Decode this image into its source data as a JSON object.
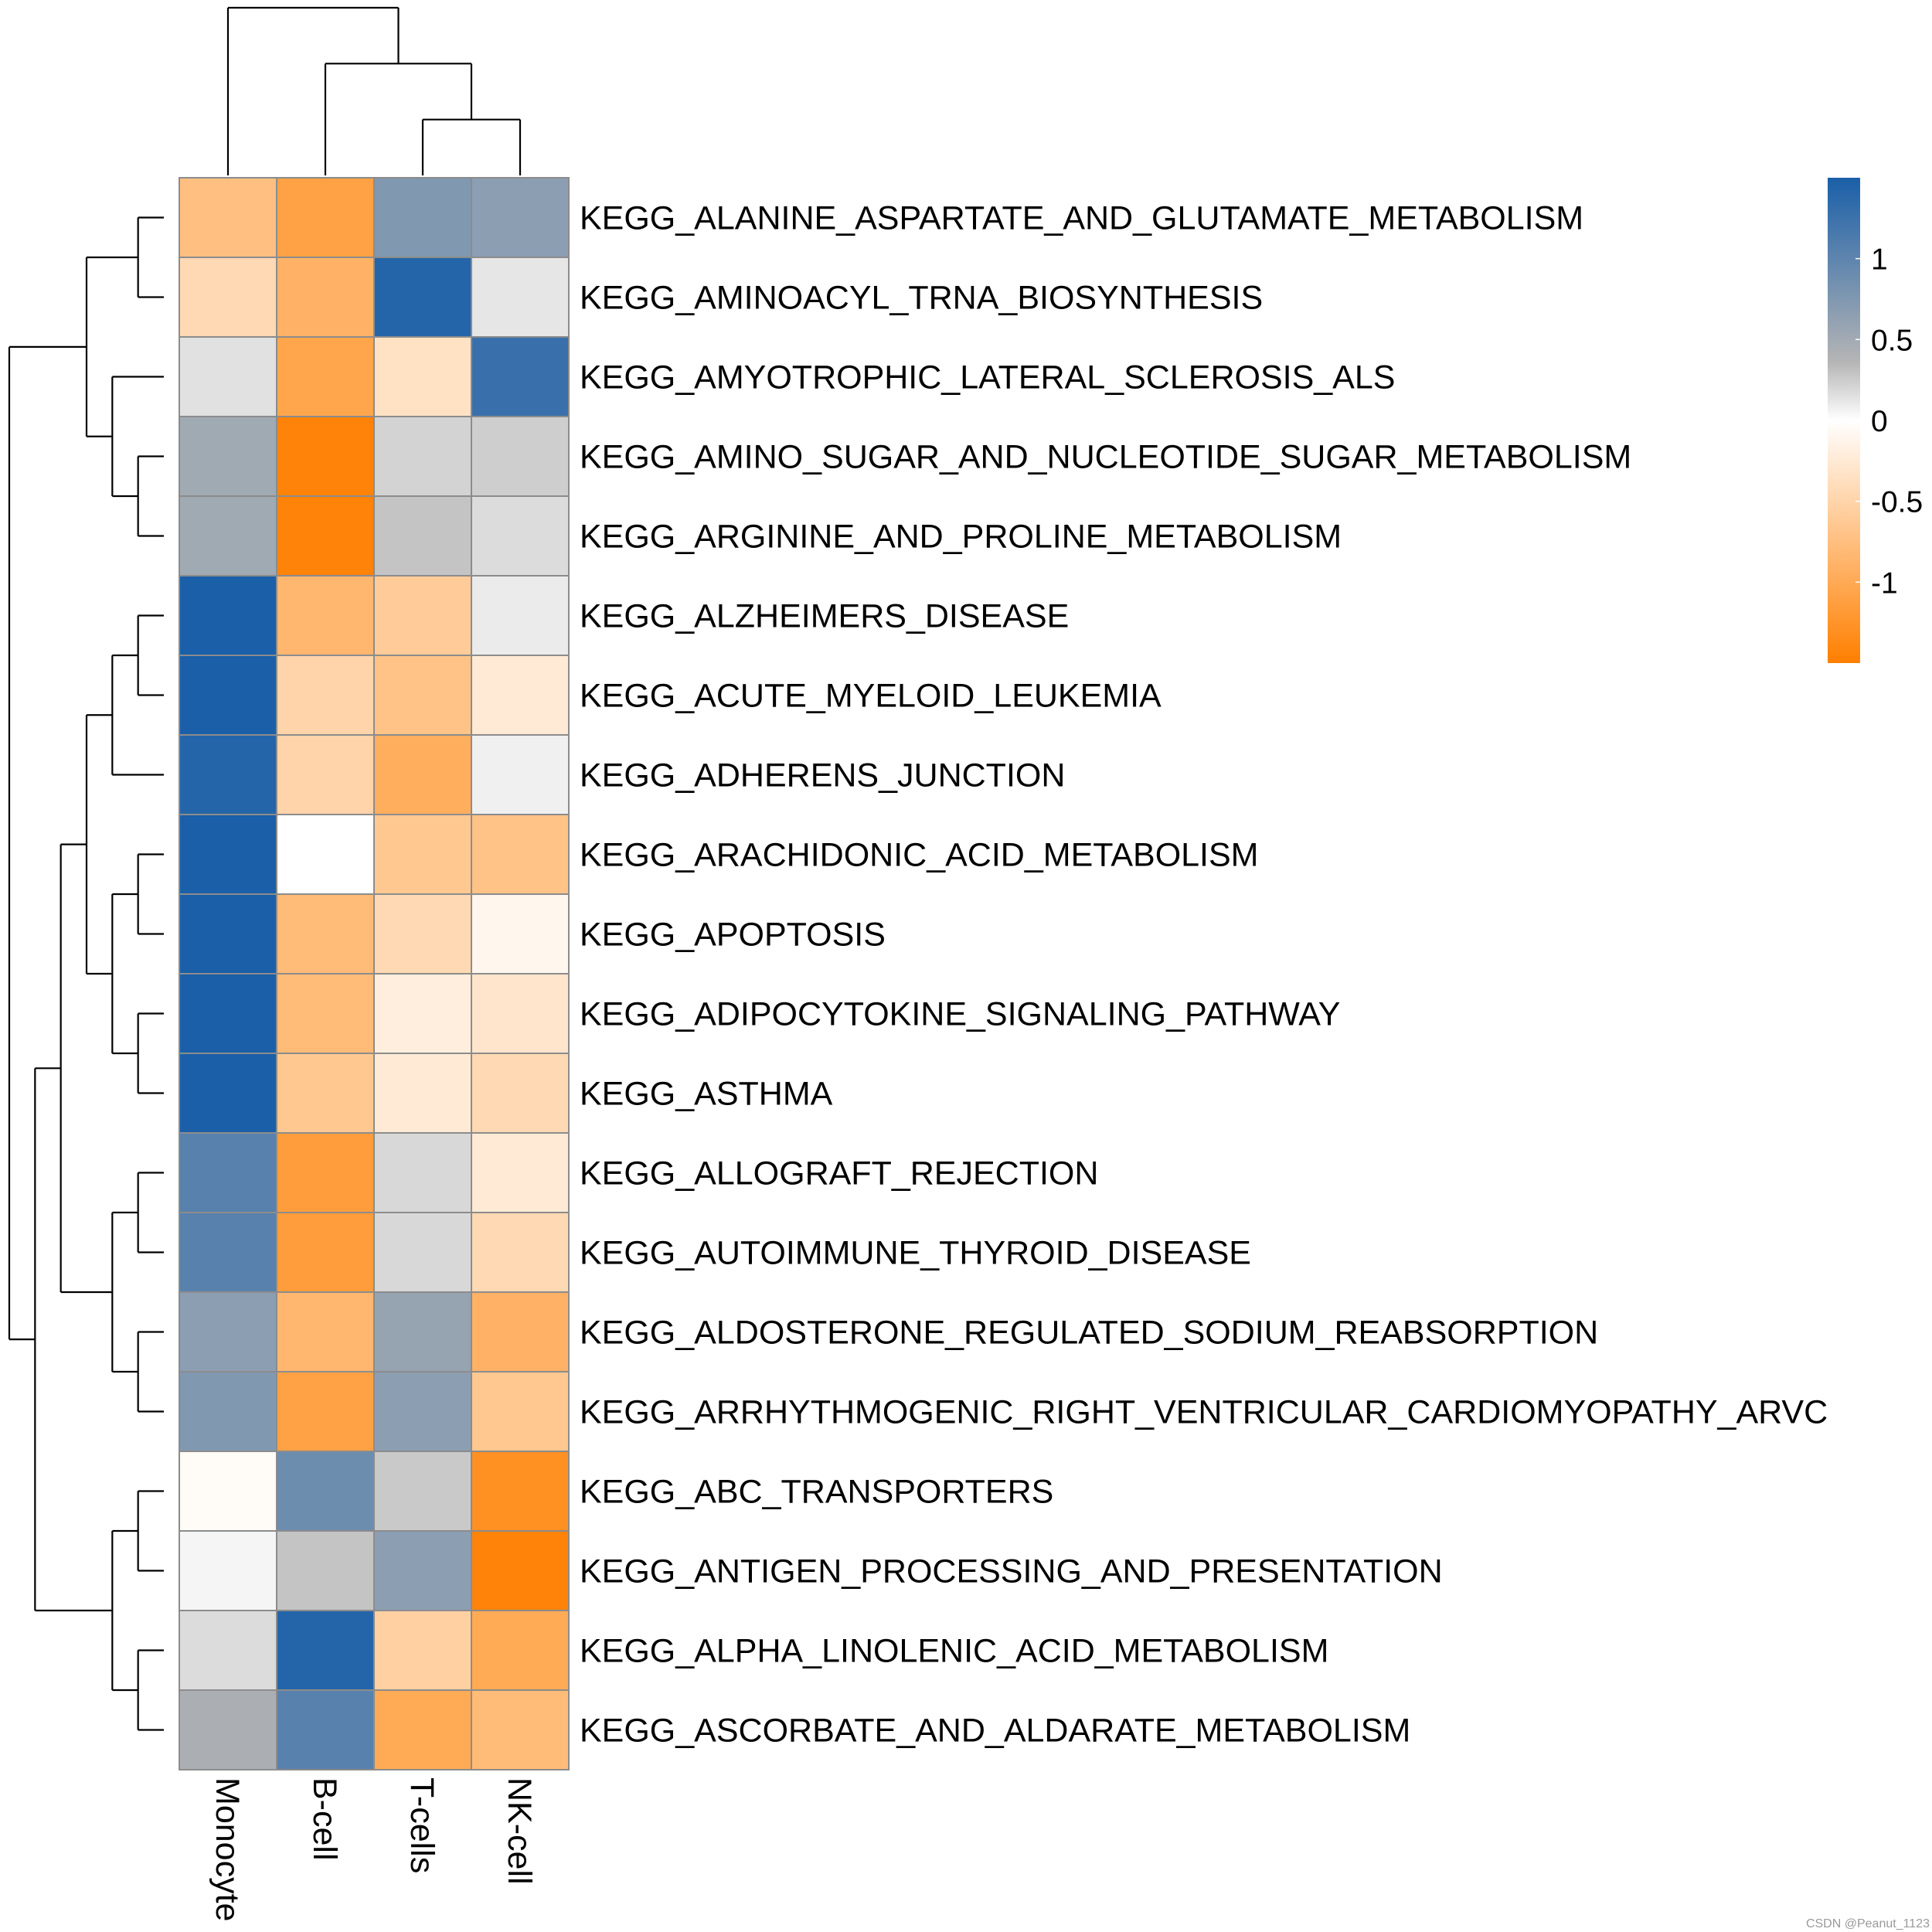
{
  "chart_data": {
    "type": "heatmap",
    "title": "",
    "columns": [
      "Monocyte",
      "B-cell",
      "T-cells",
      "NK-cell"
    ],
    "rows": [
      "KEGG_ALANINE_ASPARTATE_AND_GLUTAMATE_METABOLISM",
      "KEGG_AMINOACYL_TRNA_BIOSYNTHESIS",
      "KEGG_AMYOTROPHIC_LATERAL_SCLEROSIS_ALS",
      "KEGG_AMINO_SUGAR_AND_NUCLEOTIDE_SUGAR_METABOLISM",
      "KEGG_ARGININE_AND_PROLINE_METABOLISM",
      "KEGG_ALZHEIMERS_DISEASE",
      "KEGG_ACUTE_MYELOID_LEUKEMIA",
      "KEGG_ADHERENS_JUNCTION",
      "KEGG_ARACHIDONIC_ACID_METABOLISM",
      "KEGG_APOPTOSIS",
      "KEGG_ADIPOCYTOKINE_SIGNALING_PATHWAY",
      "KEGG_ASTHMA",
      "KEGG_ALLOGRAFT_REJECTION",
      "KEGG_AUTOIMMUNE_THYROID_DISEASE",
      "KEGG_ALDOSTERONE_REGULATED_SODIUM_REABSORPTION",
      "KEGG_ARRHYTHMOGENIC_RIGHT_VENTRICULAR_CARDIOMYOPATHY_ARVC",
      "KEGG_ABC_TRANSPORTERS",
      "KEGG_ANTIGEN_PROCESSING_AND_PRESENTATION",
      "KEGG_ALPHA_LINOLENIC_ACID_METABOLISM",
      "KEGG_ASCORBATE_AND_ALDARATE_METABOLISM"
    ],
    "values": [
      [
        -0.75,
        -1.1,
        1.0,
        0.95
      ],
      [
        -0.45,
        -0.9,
        1.45,
        0.25
      ],
      [
        0.3,
        -1.05,
        -0.35,
        1.35
      ],
      [
        0.85,
        -1.45,
        0.45,
        0.5
      ],
      [
        0.85,
        -1.45,
        0.6,
        0.35
      ],
      [
        1.5,
        -0.85,
        -0.6,
        0.2
      ],
      [
        1.5,
        -0.5,
        -0.7,
        -0.25
      ],
      [
        1.45,
        -0.5,
        -0.95,
        0.15
      ],
      [
        1.5,
        0.0,
        -0.65,
        -0.7
      ],
      [
        1.5,
        -0.8,
        -0.45,
        -0.1
      ],
      [
        1.5,
        -0.8,
        -0.2,
        -0.3
      ],
      [
        1.5,
        -0.65,
        -0.25,
        -0.45
      ],
      [
        1.2,
        -1.15,
        0.4,
        -0.25
      ],
      [
        1.2,
        -1.15,
        0.4,
        -0.45
      ],
      [
        0.95,
        -0.85,
        0.9,
        -0.9
      ],
      [
        1.0,
        -1.1,
        0.95,
        -0.65
      ],
      [
        -0.05,
        1.1,
        0.55,
        -1.3
      ],
      [
        0.1,
        0.6,
        0.95,
        -1.45
      ],
      [
        0.35,
        1.45,
        -0.55,
        -1.0
      ],
      [
        0.8,
        1.2,
        -1.0,
        -0.8
      ]
    ],
    "color_scale": {
      "low": "#FF7F00",
      "mid": "#FFFFFF",
      "high": "#1A5FA8",
      "neutral": "#B5B5B5",
      "range": [
        -1.5,
        1.5
      ]
    },
    "legend": {
      "position": "top-right",
      "ticks": [
        1,
        0.5,
        0,
        -0.5,
        -1
      ],
      "tick_labels": [
        "1",
        "0.5",
        "0",
        "-0.5",
        "-1"
      ]
    },
    "row_dendrogram": [
      [
        3,
        4
      ],
      [
        0,
        1
      ],
      [
        20,
        2
      ],
      [
        22,
        21
      ],
      [
        5,
        6
      ],
      [
        24,
        7
      ],
      [
        8,
        9
      ],
      [
        10,
        11
      ],
      [
        26,
        27
      ],
      [
        25,
        28
      ],
      [
        12,
        13
      ],
      [
        14,
        15
      ],
      [
        30,
        31
      ],
      [
        29,
        32
      ],
      [
        16,
        17
      ],
      [
        18,
        19
      ],
      [
        34,
        35
      ],
      [
        33,
        36
      ],
      [
        23,
        37
      ]
    ],
    "column_dendrogram": [
      [
        2,
        3
      ],
      [
        1,
        4
      ],
      [
        0,
        5
      ]
    ]
  },
  "watermark": "CSDN @Peanut_1123",
  "colors": {
    "cell_border": "#8C8C8C",
    "dendrogram": "#000000"
  }
}
